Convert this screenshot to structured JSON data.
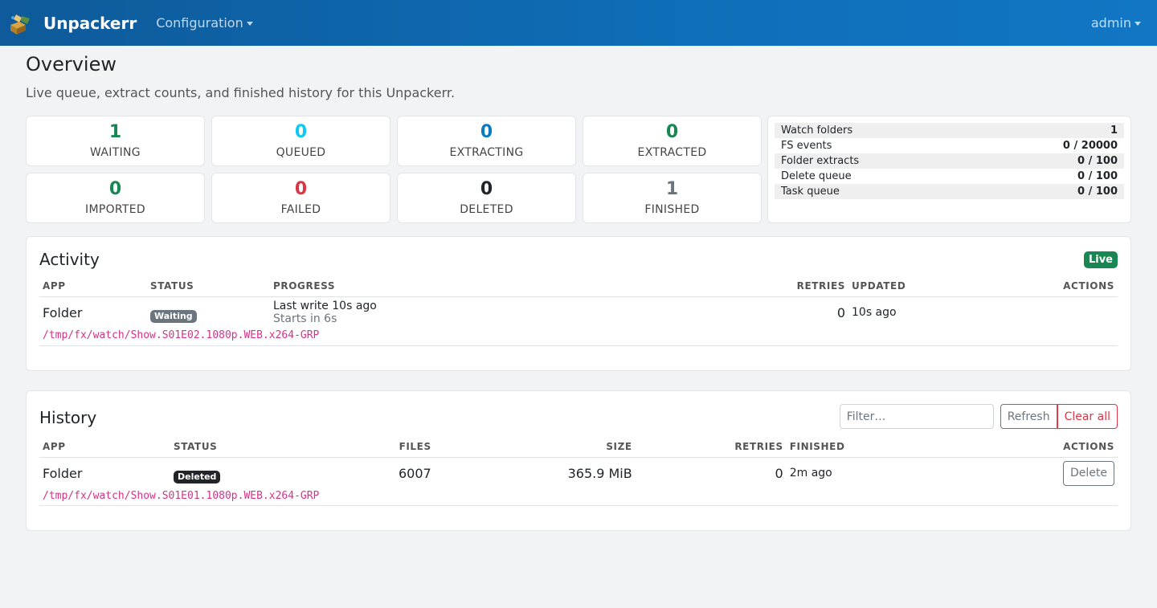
{
  "navbar": {
    "brand": "Unpackerr",
    "menu": "Configuration",
    "user": "admin"
  },
  "page": {
    "title": "Overview",
    "subtitle": "Live queue, extract counts, and finished history for this Unpackerr."
  },
  "stats": [
    {
      "value": "1",
      "label": "WAITING",
      "color": "#198754"
    },
    {
      "value": "0",
      "label": "QUEUED",
      "color": "#0dcaf0"
    },
    {
      "value": "0",
      "label": "EXTRACTING",
      "color": "#0a7bc2"
    },
    {
      "value": "0",
      "label": "EXTRACTED",
      "color": "#198754"
    },
    {
      "value": "0",
      "label": "IMPORTED",
      "color": "#198754"
    },
    {
      "value": "0",
      "label": "FAILED",
      "color": "#dc3545"
    },
    {
      "value": "0",
      "label": "DELETED",
      "color": "#212529"
    },
    {
      "value": "1",
      "label": "FINISHED",
      "color": "#6c757d"
    }
  ],
  "limits": [
    {
      "label": "Watch folders",
      "value": "1"
    },
    {
      "label": "FS events",
      "value": "0 / 20000"
    },
    {
      "label": "Folder extracts",
      "value": "0 / 100"
    },
    {
      "label": "Delete queue",
      "value": "0 / 100"
    },
    {
      "label": "Task queue",
      "value": "0 / 100"
    }
  ],
  "activity": {
    "title": "Activity",
    "badge": "Live",
    "columns": {
      "app": "APP",
      "status": "STATUS",
      "progress": "PROGRESS",
      "retries": "RETRIES",
      "updated": "UPDATED",
      "actions": "ACTIONS"
    },
    "rows": [
      {
        "app": "Folder",
        "status": "Waiting",
        "progress_main": "Last write 10s ago",
        "progress_sub": "Starts in 6s",
        "retries": "0",
        "updated": "10s ago",
        "path": "/tmp/fx/watch/Show.S01E02.1080p.WEB.x264-GRP"
      }
    ]
  },
  "history": {
    "title": "History",
    "filter_placeholder": "Filter…",
    "refresh_label": "Refresh",
    "clear_label": "Clear all",
    "columns": {
      "app": "APP",
      "status": "STATUS",
      "files": "FILES",
      "size": "SIZE",
      "retries": "RETRIES",
      "finished": "FINISHED",
      "actions": "ACTIONS"
    },
    "rows": [
      {
        "app": "Folder",
        "status": "Deleted",
        "files": "6007",
        "size": "365.9 MiB",
        "retries": "0",
        "finished": "2m ago",
        "action": "Delete",
        "path": "/tmp/fx/watch/Show.S01E01.1080p.WEB.x264-GRP"
      }
    ]
  }
}
